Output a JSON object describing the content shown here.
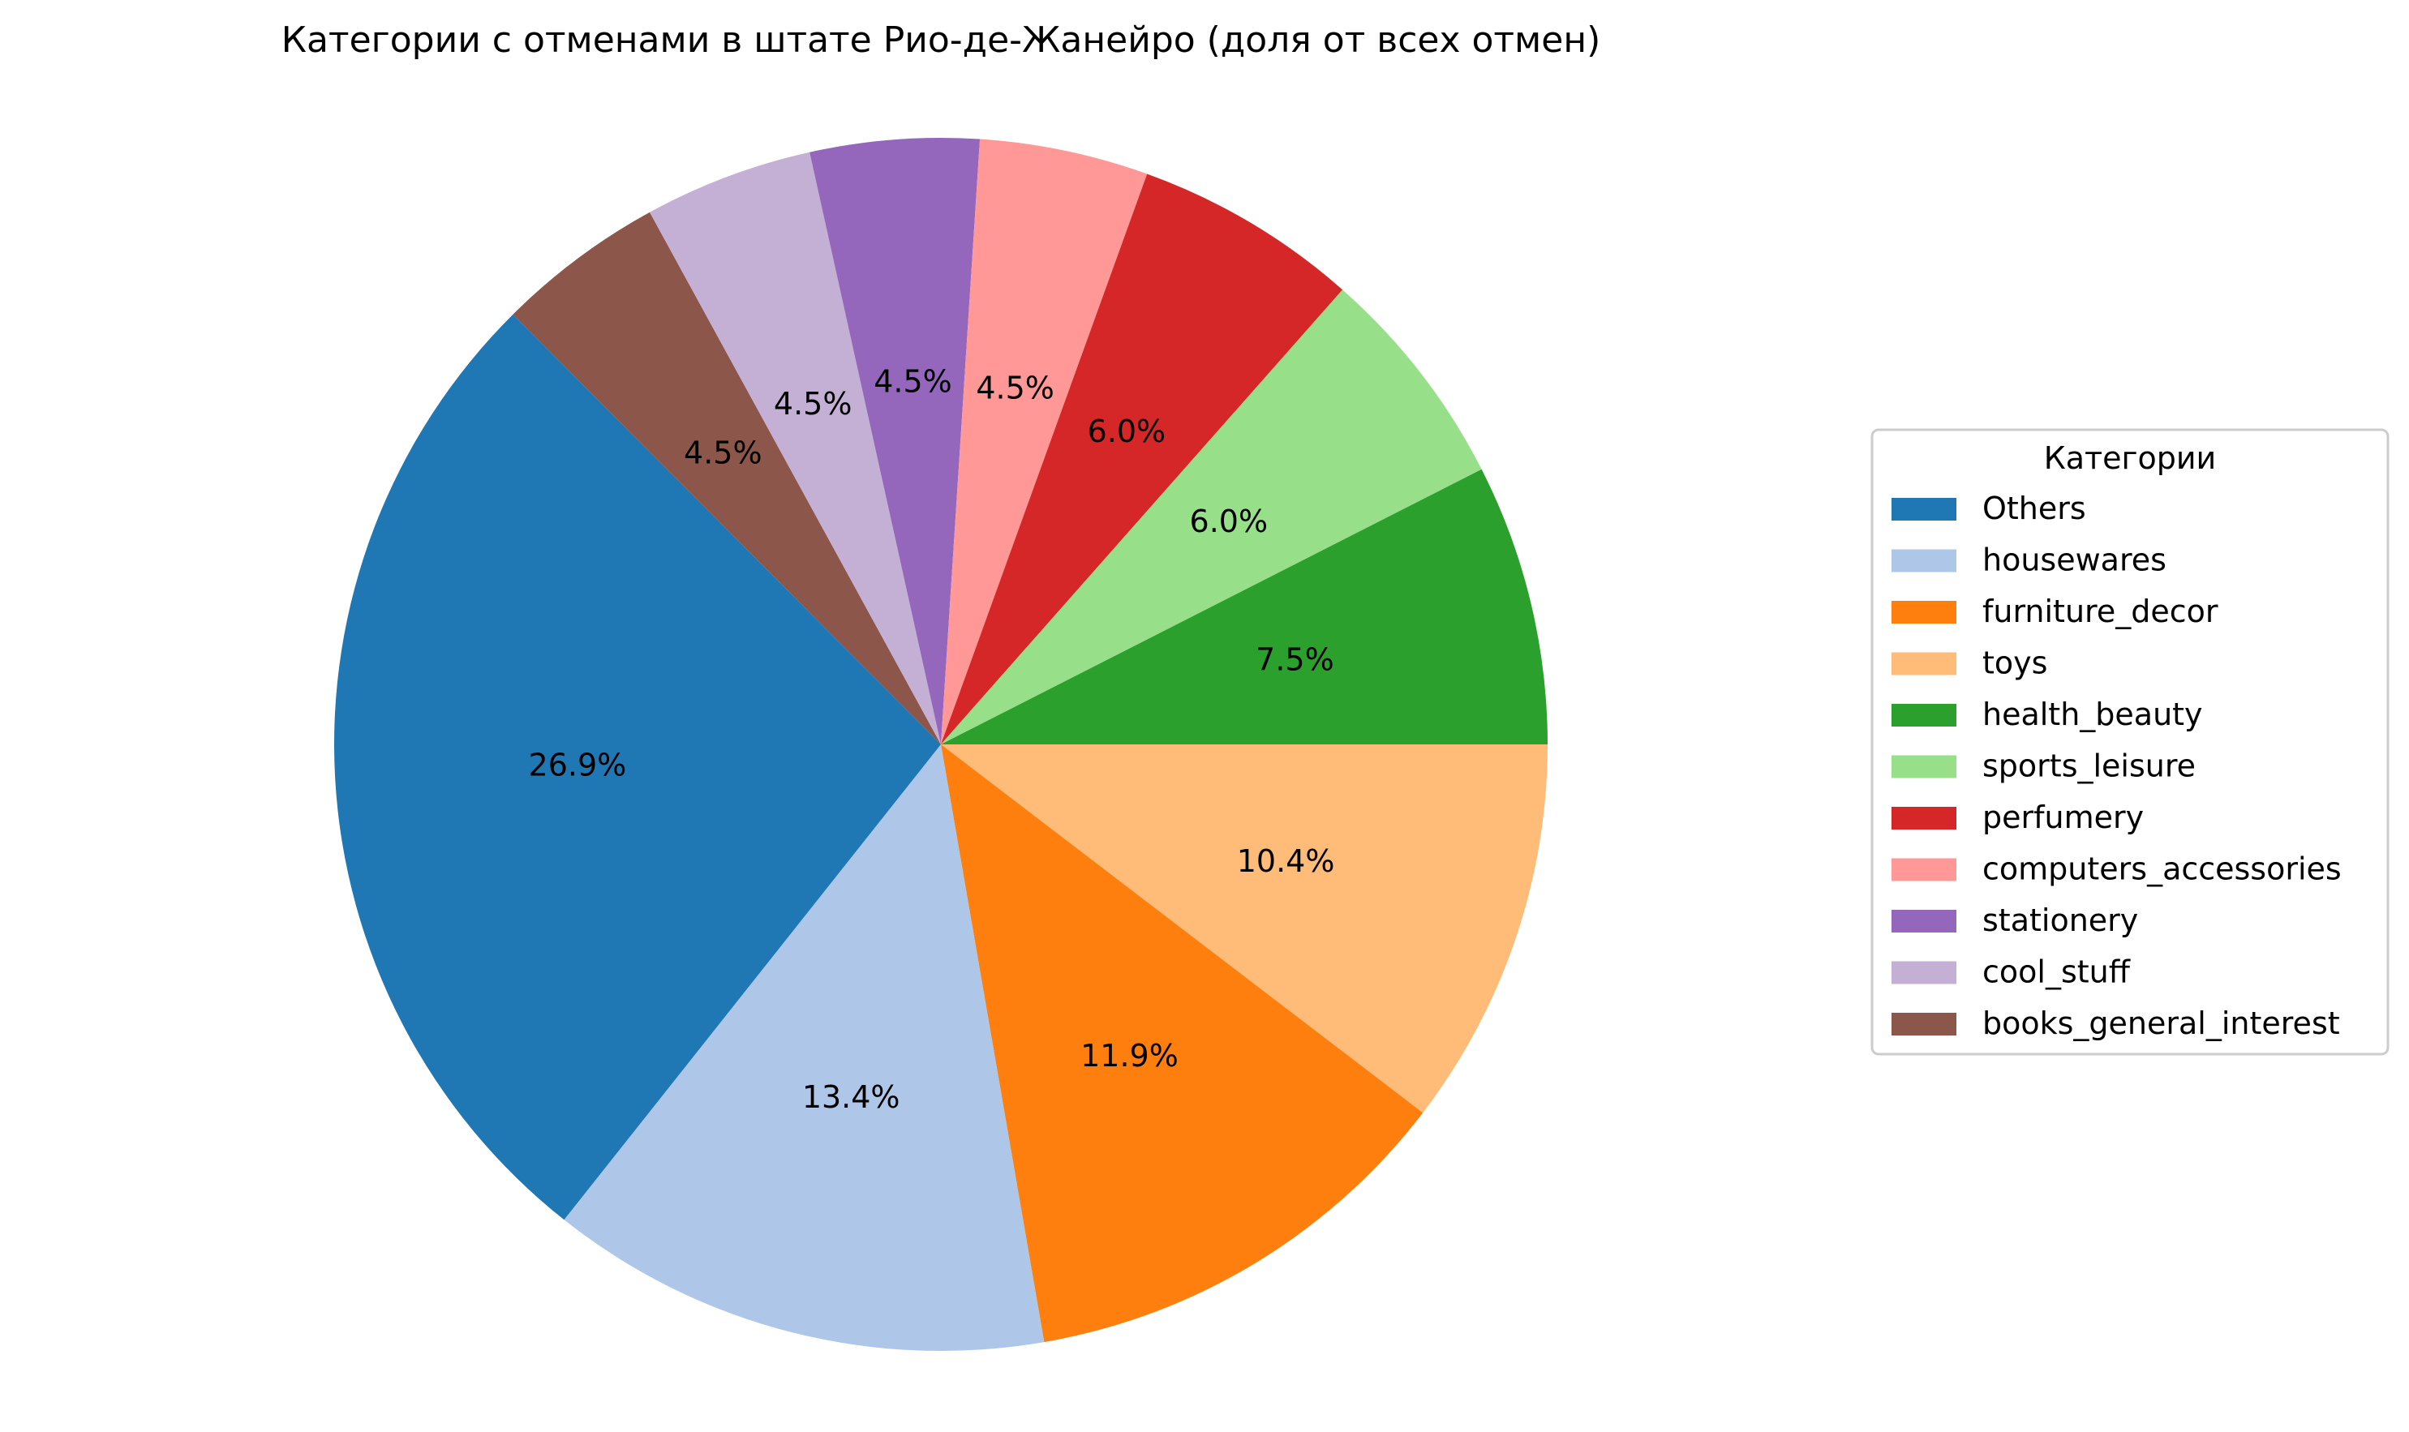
{
  "chart_data": {
    "type": "pie",
    "title": "Категории с отменами в штате Рио-де-Жанейро (доля от всех отмен)",
    "legend": {
      "title": "Категории",
      "placement": "right"
    },
    "start_angle_deg": 0,
    "direction": "clockwise",
    "slices": [
      {
        "label": "toys",
        "value": 10.4,
        "display": "10.4%",
        "color": "#ffbb78"
      },
      {
        "label": "furniture_decor",
        "value": 11.9,
        "display": "11.9%",
        "color": "#ff7f0e"
      },
      {
        "label": "housewares",
        "value": 13.4,
        "display": "13.4%",
        "color": "#aec7e8"
      },
      {
        "label": "Others",
        "value": 26.9,
        "display": "26.9%",
        "color": "#1f77b4"
      },
      {
        "label": "books_general_interest",
        "value": 4.5,
        "display": "4.5%",
        "color": "#8c564b"
      },
      {
        "label": "cool_stuff",
        "value": 4.5,
        "display": "4.5%",
        "color": "#c5b0d5"
      },
      {
        "label": "stationery",
        "value": 4.5,
        "display": "4.5%",
        "color": "#9467bd"
      },
      {
        "label": "computers_accessories",
        "value": 4.5,
        "display": "4.5%",
        "color": "#ff9896"
      },
      {
        "label": "perfumery",
        "value": 6.0,
        "display": "6.0%",
        "color": "#d62728"
      },
      {
        "label": "sports_leisure",
        "value": 6.0,
        "display": "6.0%",
        "color": "#98df8a"
      },
      {
        "label": "health_beauty",
        "value": 7.5,
        "display": "7.5%",
        "color": "#2ca02c"
      }
    ],
    "legend_order": [
      "Others",
      "housewares",
      "furniture_decor",
      "toys",
      "health_beauty",
      "sports_leisure",
      "perfumery",
      "computers_accessories",
      "stationery",
      "cool_stuff",
      "books_general_interest"
    ]
  }
}
